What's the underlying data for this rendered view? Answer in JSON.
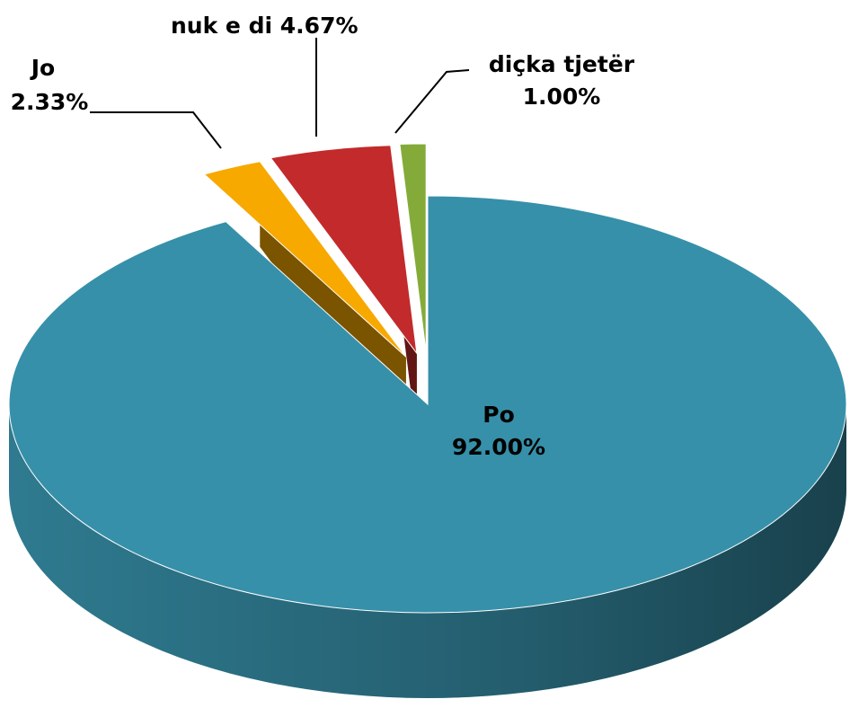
{
  "chart_data": {
    "type": "pie",
    "categories": [
      "Po",
      "Jo",
      "nuk e di",
      "diçka tjetër"
    ],
    "values": [
      92,
      2.33,
      4.67,
      1.0
    ],
    "value_labels": [
      "92.00%",
      "2.33%",
      "4.67%",
      "1.00%"
    ],
    "colors": [
      "#3790a9",
      "#f7a900",
      "#c22a2b",
      "#84ab3a"
    ]
  }
}
